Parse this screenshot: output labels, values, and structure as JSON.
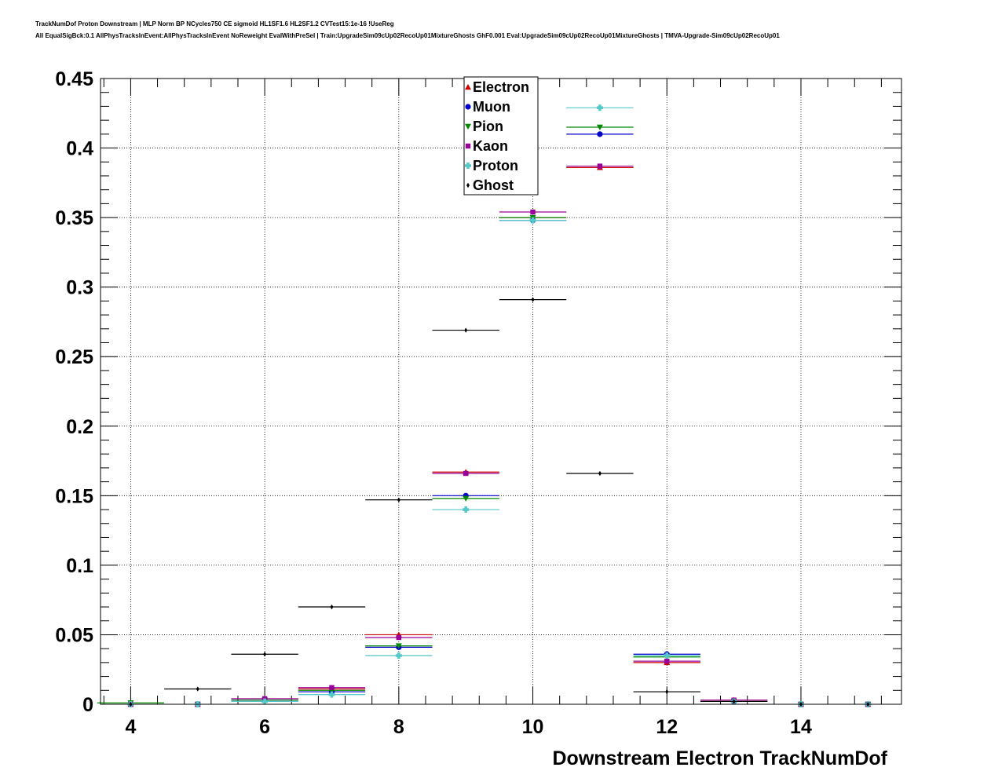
{
  "title_lines": [
    "TrackNumDof Proton Downstream | MLP Norm BP NCycles750 CE sigmoid HL1SF1.6 HL2SF1.2 CVTest15:1e-16 !UseReg",
    "All EqualSigBck:0.1 AllPhysTracksInEvent:AllPhysTracksInEvent NoReweight EvalWithPreSel | Train:UpgradeSim09cUp02RecoUp01MixtureGhosts GhF0.001 Eval:UpgradeSim09cUp02RecoUp01MixtureGhosts | TMVA-Upgrade-Sim09cUp02RecoUp01"
  ],
  "chart_data": {
    "type": "scatter",
    "xlabel": "Downstream Electron TrackNumDof",
    "ylabel": "",
    "xlim": [
      3.55,
      15.5
    ],
    "ylim": [
      0,
      0.45
    ],
    "x_ticks": [
      4,
      6,
      8,
      10,
      12,
      14
    ],
    "y_ticks": [
      0,
      0.05,
      0.1,
      0.15,
      0.2,
      0.25,
      0.3,
      0.35,
      0.4,
      0.45
    ],
    "y_tick_labels": [
      "0",
      "0.05",
      "0.1",
      "0.15",
      "0.2",
      "0.25",
      "0.3",
      "0.35",
      "0.4",
      "0.45"
    ],
    "x_tick_labels": [
      "4",
      "6",
      "8",
      "10",
      "12",
      "14"
    ],
    "grid": true,
    "legend_position": "top-center",
    "x": [
      4,
      5,
      6,
      7,
      8,
      9,
      10,
      11,
      12,
      13,
      14,
      15
    ],
    "series": [
      {
        "name": "Electron",
        "color": "#cc0000",
        "marker": "triangle-up",
        "values": [
          0,
          0,
          0.004,
          0.011,
          0.05,
          0.167,
          0.35,
          0.386,
          0.03,
          0.003,
          0,
          0
        ]
      },
      {
        "name": "Muon",
        "color": "#0000cc",
        "marker": "circle",
        "values": [
          0,
          0,
          0.003,
          0.009,
          0.041,
          0.15,
          0.348,
          0.41,
          0.036,
          0.002,
          0,
          0
        ]
      },
      {
        "name": "Pion",
        "color": "#008800",
        "marker": "triangle-down",
        "values": [
          0.001,
          0,
          0.003,
          0.01,
          0.042,
          0.148,
          0.35,
          0.415,
          0.034,
          0.002,
          0,
          0
        ]
      },
      {
        "name": "Kaon",
        "color": "#990099",
        "marker": "square",
        "values": [
          0,
          0,
          0.004,
          0.012,
          0.048,
          0.166,
          0.354,
          0.387,
          0.031,
          0.003,
          0,
          0
        ]
      },
      {
        "name": "Proton",
        "color": "#55c8c8",
        "marker": "cross",
        "values": [
          0,
          0,
          0.002,
          0.007,
          0.035,
          0.14,
          0.348,
          0.429,
          0.035,
          0.002,
          0,
          0
        ]
      },
      {
        "name": "Ghost",
        "color": "#000000",
        "marker": "diamond",
        "values": [
          0,
          0.011,
          0.036,
          0.07,
          0.147,
          0.269,
          0.291,
          0.166,
          0.009,
          0.002,
          0,
          0
        ]
      }
    ]
  }
}
